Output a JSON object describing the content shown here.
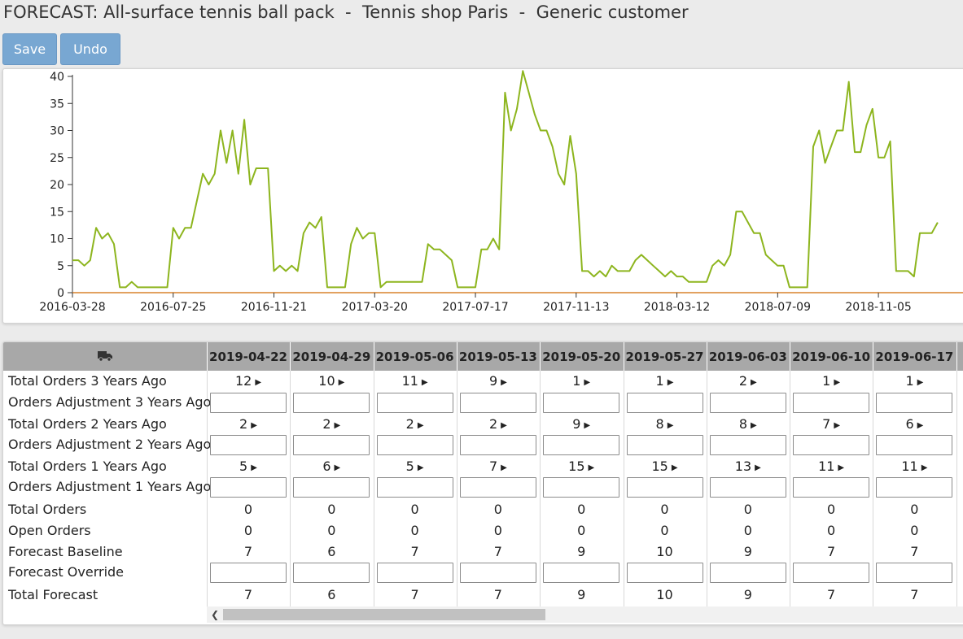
{
  "header": {
    "title": "FORECAST: All-surface tennis ball pack  -  Tennis shop Paris  -  Generic customer"
  },
  "toolbar": {
    "save_label": "Save",
    "undo_label": "Undo"
  },
  "colors": {
    "series": "#8db51e",
    "button": "#78a7d2",
    "header_bg": "#a8a8a8",
    "baseline": "#d9822b"
  },
  "chart_data": {
    "type": "line",
    "ylim": [
      0,
      40
    ],
    "yticks": [
      "0",
      "5",
      "10",
      "15",
      "20",
      "25",
      "30",
      "35",
      "40"
    ],
    "xticks": [
      "2016-03-28",
      "2016-07-25",
      "2016-11-21",
      "2017-03-20",
      "2017-07-17",
      "2017-11-13",
      "2018-03-12",
      "2018-07-09",
      "2018-11-05"
    ],
    "x_start": "2016-03-28",
    "x_step": "weekly",
    "series": [
      {
        "values": [
          6,
          6,
          5,
          6,
          12,
          10,
          11,
          9,
          1,
          1,
          2,
          1,
          1,
          1,
          1,
          1,
          1,
          12,
          10,
          12,
          12,
          17,
          22,
          20,
          22,
          30,
          24,
          30,
          22,
          32,
          20,
          23,
          23,
          23,
          4,
          5,
          4,
          5,
          4,
          11,
          13,
          12,
          14,
          1,
          1,
          1,
          1,
          9,
          12,
          10,
          11,
          11,
          1,
          2,
          2,
          2,
          2,
          2,
          2,
          2,
          9,
          8,
          8,
          7,
          6,
          1,
          1,
          1,
          1,
          8,
          8,
          10,
          8,
          37,
          30,
          34,
          41,
          37,
          33,
          30,
          30,
          27,
          22,
          20,
          29,
          22,
          4,
          4,
          3,
          4,
          3,
          5,
          4,
          4,
          4,
          6,
          7,
          6,
          5,
          4,
          3,
          4,
          3,
          3,
          2,
          2,
          2,
          2,
          5,
          6,
          5,
          7,
          15,
          15,
          13,
          11,
          11,
          7,
          6,
          5,
          5,
          1,
          1,
          1,
          1,
          27,
          30,
          24,
          27,
          30,
          30,
          39,
          26,
          26,
          31,
          34,
          25,
          25,
          28,
          4,
          4,
          4,
          3,
          11,
          11,
          11,
          13
        ]
      }
    ]
  },
  "grid": {
    "columns": [
      "2019-04-22",
      "2019-04-29",
      "2019-05-06",
      "2019-05-13",
      "2019-05-20",
      "2019-05-27",
      "2019-06-03",
      "2019-06-10",
      "2019-06-17"
    ],
    "rows": [
      {
        "label": "Total Orders 3 Years Ago",
        "type": "link",
        "values": [
          "12",
          "10",
          "11",
          "9",
          "1",
          "1",
          "2",
          "1",
          "1"
        ]
      },
      {
        "label": "Orders Adjustment 3 Years Ago",
        "type": "input"
      },
      {
        "label": "Total Orders 2 Years Ago",
        "type": "link",
        "values": [
          "2",
          "2",
          "2",
          "2",
          "9",
          "8",
          "8",
          "7",
          "6"
        ]
      },
      {
        "label": "Orders Adjustment 2 Years Ago",
        "type": "input"
      },
      {
        "label": "Total Orders 1 Years Ago",
        "type": "link",
        "values": [
          "5",
          "6",
          "5",
          "7",
          "15",
          "15",
          "13",
          "11",
          "11"
        ]
      },
      {
        "label": "Orders Adjustment 1 Years Ago",
        "type": "input"
      },
      {
        "label": "Total Orders",
        "type": "text",
        "values": [
          "0",
          "0",
          "0",
          "0",
          "0",
          "0",
          "0",
          "0",
          "0"
        ]
      },
      {
        "label": "Open Orders",
        "type": "text",
        "values": [
          "0",
          "0",
          "0",
          "0",
          "0",
          "0",
          "0",
          "0",
          "0"
        ]
      },
      {
        "label": "Forecast Baseline",
        "type": "text",
        "values": [
          "7",
          "6",
          "7",
          "7",
          "9",
          "10",
          "9",
          "7",
          "7"
        ]
      },
      {
        "label": "Forecast Override",
        "type": "input"
      },
      {
        "label": "Total Forecast",
        "type": "text",
        "values": [
          "7",
          "6",
          "7",
          "7",
          "9",
          "10",
          "9",
          "7",
          "7"
        ]
      }
    ]
  }
}
